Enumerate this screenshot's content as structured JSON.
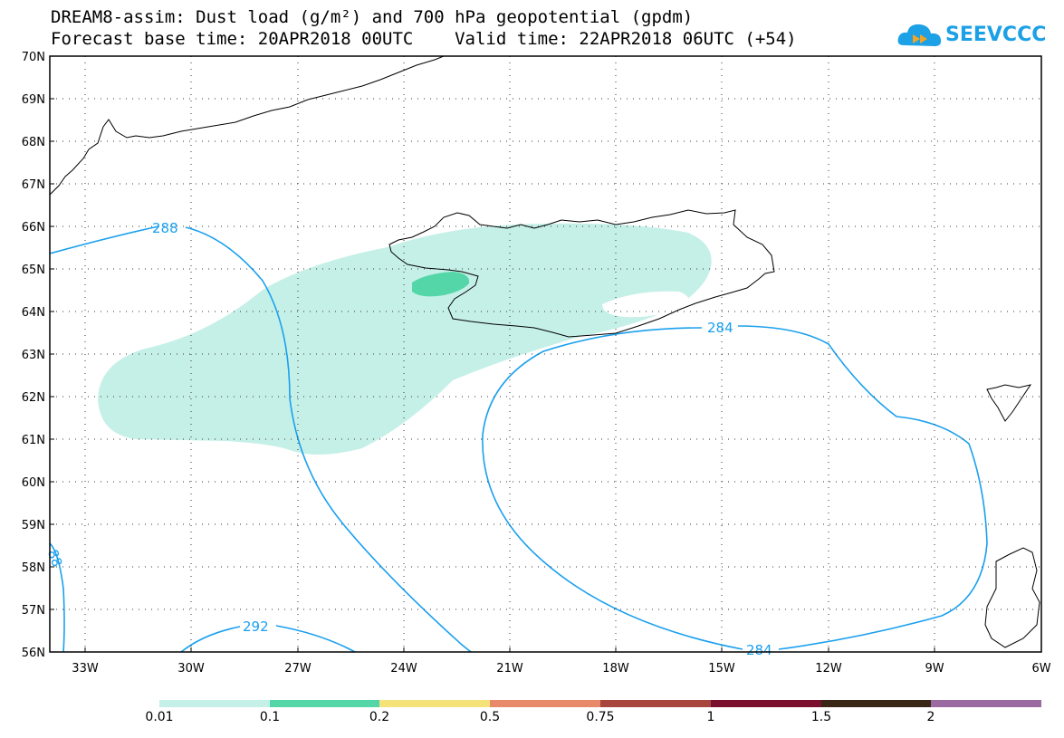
{
  "title": {
    "line1": "DREAM8-assim: Dust load (g/m²) and 700 hPa geopotential (gpdm)",
    "line2": "Forecast base time: 20APR2018 00UTC    Valid time: 22APR2018 06UTC (+54)"
  },
  "logo": {
    "text": "SEEVCCC",
    "color": "#1ca0e6"
  },
  "map": {
    "lat_labels": [
      "70N",
      "69N",
      "68N",
      "67N",
      "66N",
      "65N",
      "64N",
      "63N",
      "62N",
      "61N",
      "60N",
      "59N",
      "58N",
      "57N",
      "56N"
    ],
    "lon_labels": [
      "33W",
      "30W",
      "27W",
      "24W",
      "21W",
      "18W",
      "15W",
      "12W",
      "9W",
      "6W"
    ],
    "contour_labels": [
      "288",
      "284",
      "292",
      "284",
      "88"
    ],
    "dust_colors": {
      "low": "#c5f0e8",
      "high": "#55d6a8"
    },
    "contour_color": "#1aa0ee",
    "coastline_color": "#000000",
    "grid": "dotted"
  },
  "colorbar": {
    "labels": [
      "0.01",
      "0.1",
      "0.2",
      "0.5",
      "0.75",
      "1",
      "1.5",
      "2"
    ],
    "colors": [
      "#c5f0e8",
      "#55d6a8",
      "#f5e37a",
      "#e88a6a",
      "#a6463c",
      "#7a0f2e",
      "#3a2614",
      "#9a6aa0"
    ]
  }
}
